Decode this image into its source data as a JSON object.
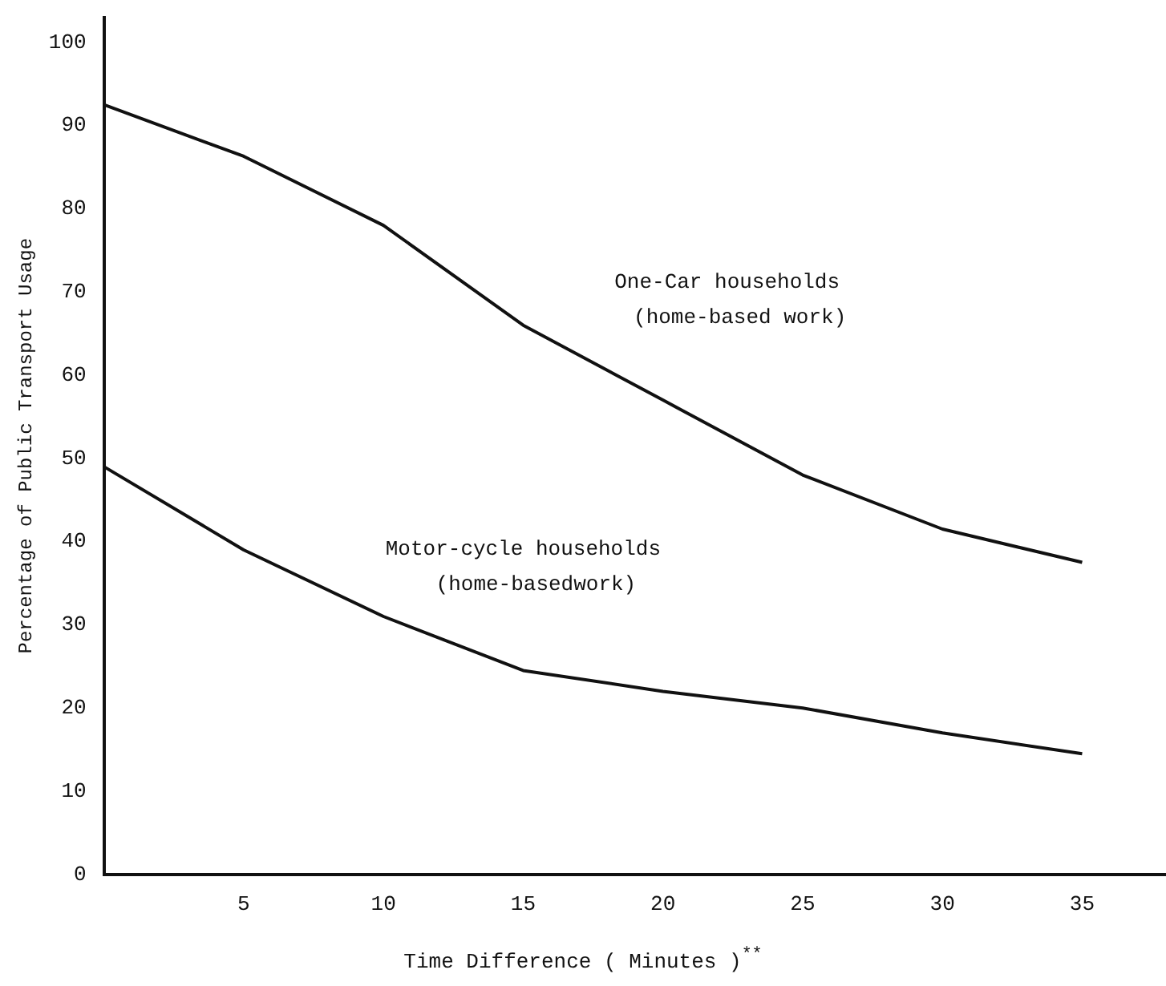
{
  "chart_data": {
    "type": "line",
    "xlabel": "Time Difference ( Minutes )$^{**}$",
    "ylabel": "Percentage of Public Transport Usage",
    "x": [
      0,
      5,
      10,
      15,
      20,
      25,
      30,
      35
    ],
    "xlim": [
      0,
      38
    ],
    "xticks": [
      5,
      10,
      15,
      20,
      25,
      30,
      35
    ],
    "ylim": [
      0,
      103
    ],
    "yticks": [
      0,
      10,
      20,
      30,
      40,
      50,
      60,
      70,
      80,
      90,
      100
    ],
    "grid": false,
    "legend": false,
    "marker": "none",
    "line_style": "solid",
    "series": [
      {
        "name": "One-Car households (home-based work)",
        "color": "#111111",
        "values": [
          92.5,
          86.3,
          78,
          66,
          57,
          48,
          41.5,
          37.5
        ]
      },
      {
        "name": "Motor-cycle households (home-basedwork)",
        "color": "#111111",
        "values": [
          49,
          39,
          31,
          24.5,
          22,
          20,
          17,
          14.5
        ]
      }
    ]
  }
}
